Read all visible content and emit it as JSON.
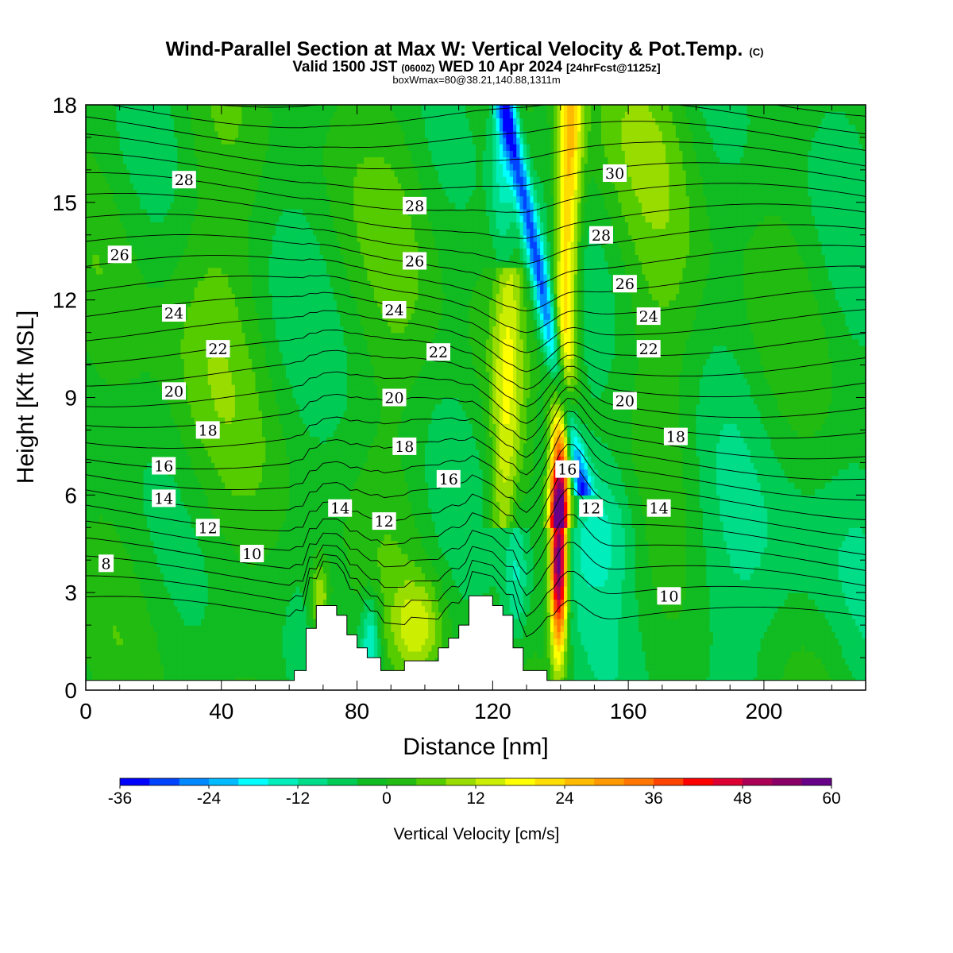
{
  "title": {
    "main": "Wind-Parallel Section at Max W: Vertical Velocity & Pot.Temp.",
    "copyright": "(C)",
    "valid_prefix": "Valid 1500 JST",
    "valid_utc": "(0600Z)",
    "valid_date": "WED 10 Apr 2024",
    "forecast": "[24hrFcst@1125z]",
    "box_info": "boxWmax=80@38.21,140.88,1311m"
  },
  "chart_data": {
    "type": "heatmap",
    "xlabel": "Distance [nm]",
    "ylabel": "Height [Kft MSL]",
    "xlim": [
      0,
      230
    ],
    "ylim": [
      0,
      18
    ],
    "x_ticks": [
      "0",
      "40",
      "80",
      "120",
      "160",
      "200"
    ],
    "y_ticks": [
      "0",
      "3",
      "6",
      "9",
      "12",
      "15",
      "18"
    ],
    "colorbar": {
      "label": "Vertical Velocity [cm/s]",
      "range": [
        -36,
        60
      ],
      "step": 4,
      "tick_labels": [
        "-36",
        "-24",
        "-12",
        "0",
        "12",
        "24",
        "36",
        "48",
        "60"
      ],
      "colors": [
        "#0000ff",
        "#0044ff",
        "#0088ff",
        "#00bbff",
        "#00ffff",
        "#00eebb",
        "#00dd88",
        "#00cc55",
        "#11bb22",
        "#22bb11",
        "#55cc00",
        "#99dd00",
        "#ccee00",
        "#ffff00",
        "#ffdd00",
        "#ffbb00",
        "#ff9900",
        "#ff7700",
        "#ff4400",
        "#ff0000",
        "#dd0033",
        "#aa0055",
        "#880066",
        "#660088"
      ]
    },
    "theta_contour_labels": [
      {
        "text": "28",
        "x": 29,
        "y": 15.7
      },
      {
        "text": "26",
        "x": 10,
        "y": 13.4
      },
      {
        "text": "24",
        "x": 26,
        "y": 11.6
      },
      {
        "text": "22",
        "x": 39,
        "y": 10.5
      },
      {
        "text": "20",
        "x": 26,
        "y": 9.2
      },
      {
        "text": "18",
        "x": 36,
        "y": 8.0
      },
      {
        "text": "16",
        "x": 23,
        "y": 6.9
      },
      {
        "text": "14",
        "x": 23,
        "y": 5.9
      },
      {
        "text": "12",
        "x": 36,
        "y": 5.0
      },
      {
        "text": "10",
        "x": 49,
        "y": 4.2
      },
      {
        "text": "8",
        "x": 6,
        "y": 3.9
      },
      {
        "text": "28",
        "x": 97,
        "y": 14.9
      },
      {
        "text": "26",
        "x": 97,
        "y": 13.2
      },
      {
        "text": "24",
        "x": 91,
        "y": 11.7
      },
      {
        "text": "22",
        "x": 104,
        "y": 10.4
      },
      {
        "text": "20",
        "x": 91,
        "y": 9.0
      },
      {
        "text": "18",
        "x": 94,
        "y": 7.5
      },
      {
        "text": "16",
        "x": 107,
        "y": 6.5
      },
      {
        "text": "14",
        "x": 75,
        "y": 5.6
      },
      {
        "text": "12",
        "x": 88,
        "y": 5.2
      },
      {
        "text": "30",
        "x": 156,
        "y": 15.9
      },
      {
        "text": "28",
        "x": 152,
        "y": 14.0
      },
      {
        "text": "26",
        "x": 159,
        "y": 12.5
      },
      {
        "text": "24",
        "x": 166,
        "y": 11.5
      },
      {
        "text": "22",
        "x": 166,
        "y": 10.5
      },
      {
        "text": "20",
        "x": 159,
        "y": 8.9
      },
      {
        "text": "18",
        "x": 174,
        "y": 7.8
      },
      {
        "text": "16",
        "x": 142,
        "y": 6.8
      },
      {
        "text": "12",
        "x": 149,
        "y": 5.6
      },
      {
        "text": "14",
        "x": 169,
        "y": 5.6
      },
      {
        "text": "10",
        "x": 172,
        "y": 2.9
      }
    ],
    "terrain_profile": [
      [
        0,
        0.3
      ],
      [
        61.5,
        0.3
      ],
      [
        61.5,
        0.6
      ],
      [
        65,
        0.6
      ],
      [
        65,
        1.9
      ],
      [
        68,
        1.9
      ],
      [
        68,
        2.6
      ],
      [
        74,
        2.6
      ],
      [
        74,
        2.3
      ],
      [
        77,
        2.3
      ],
      [
        77,
        1.7
      ],
      [
        80,
        1.7
      ],
      [
        80,
        1.3
      ],
      [
        83,
        1.3
      ],
      [
        83,
        1.0
      ],
      [
        87,
        1.0
      ],
      [
        87,
        0.6
      ],
      [
        94,
        0.6
      ],
      [
        94,
        0.9
      ],
      [
        104,
        0.9
      ],
      [
        104,
        1.3
      ],
      [
        107,
        1.3
      ],
      [
        107,
        1.6
      ],
      [
        110,
        1.6
      ],
      [
        110,
        2.0
      ],
      [
        113,
        2.0
      ],
      [
        113,
        2.9
      ],
      [
        120,
        2.9
      ],
      [
        120,
        2.6
      ],
      [
        123,
        2.6
      ],
      [
        123,
        2.3
      ],
      [
        126,
        2.3
      ],
      [
        126,
        1.3
      ],
      [
        129,
        1.3
      ],
      [
        129,
        0.6
      ],
      [
        136,
        0.6
      ],
      [
        136,
        0.3
      ],
      [
        230,
        0.3
      ]
    ],
    "velocity_features": [
      {
        "kind": "updraft",
        "x": 139.5,
        "y": 4.0,
        "peak": 60
      },
      {
        "kind": "updraft",
        "x": 142.5,
        "y": 15.0,
        "peak": 26
      },
      {
        "kind": "downdraft",
        "x": 122.5,
        "y": 16.0,
        "peak": -36
      },
      {
        "kind": "downdraft",
        "x": 140,
        "y": 9.5,
        "peak": -24
      },
      {
        "kind": "updraft",
        "x": 69,
        "y": 2.8,
        "peak": 16
      },
      {
        "kind": "updraft",
        "x": 98,
        "y": 2.0,
        "peak": 12
      },
      {
        "kind": "downdraft",
        "x": 84,
        "y": 1.5,
        "peak": -16
      }
    ]
  }
}
